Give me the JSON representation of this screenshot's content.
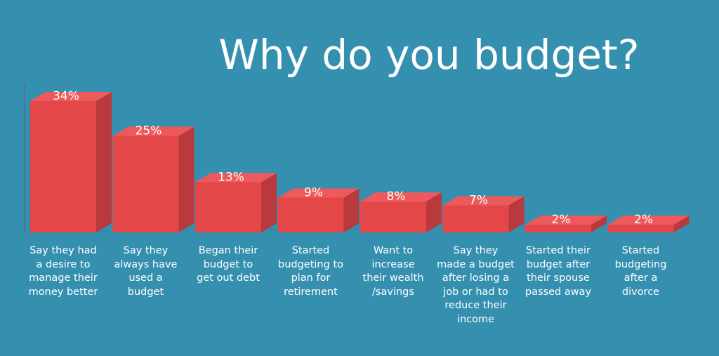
{
  "chart_data": {
    "type": "bar",
    "title": "Why do you budget?",
    "categories": [
      "Say they had\na desire to\nmanage their\nmoney better",
      "Say they\nalways have\nused a\nbudget",
      "Began their\nbudget to\nget out debt",
      "Started\nbudgeting to\nplan for\nretirement",
      "Want to\nincrease\ntheir wealth\n/savings",
      "Say they\nmade a budget\nafter losing a\njob or had to\nreduce their\nincome",
      "Started their\nbudget after\ntheir spouse\npassed away",
      "Started\nbudgeting\nafter a\ndivorce"
    ],
    "values": [
      34,
      25,
      13,
      9,
      8,
      7,
      2,
      2
    ],
    "value_labels": [
      "34%",
      "25%",
      "13%",
      "9%",
      "8%",
      "7%",
      "2%",
      "2%"
    ],
    "ylim": [
      0,
      34
    ],
    "grid": false,
    "colors": {
      "background": "#3590b0",
      "bar_front": "#e44748",
      "bar_top": "#ee5a5b",
      "bar_side": "#b83a3d",
      "text": "#ffffff"
    }
  }
}
